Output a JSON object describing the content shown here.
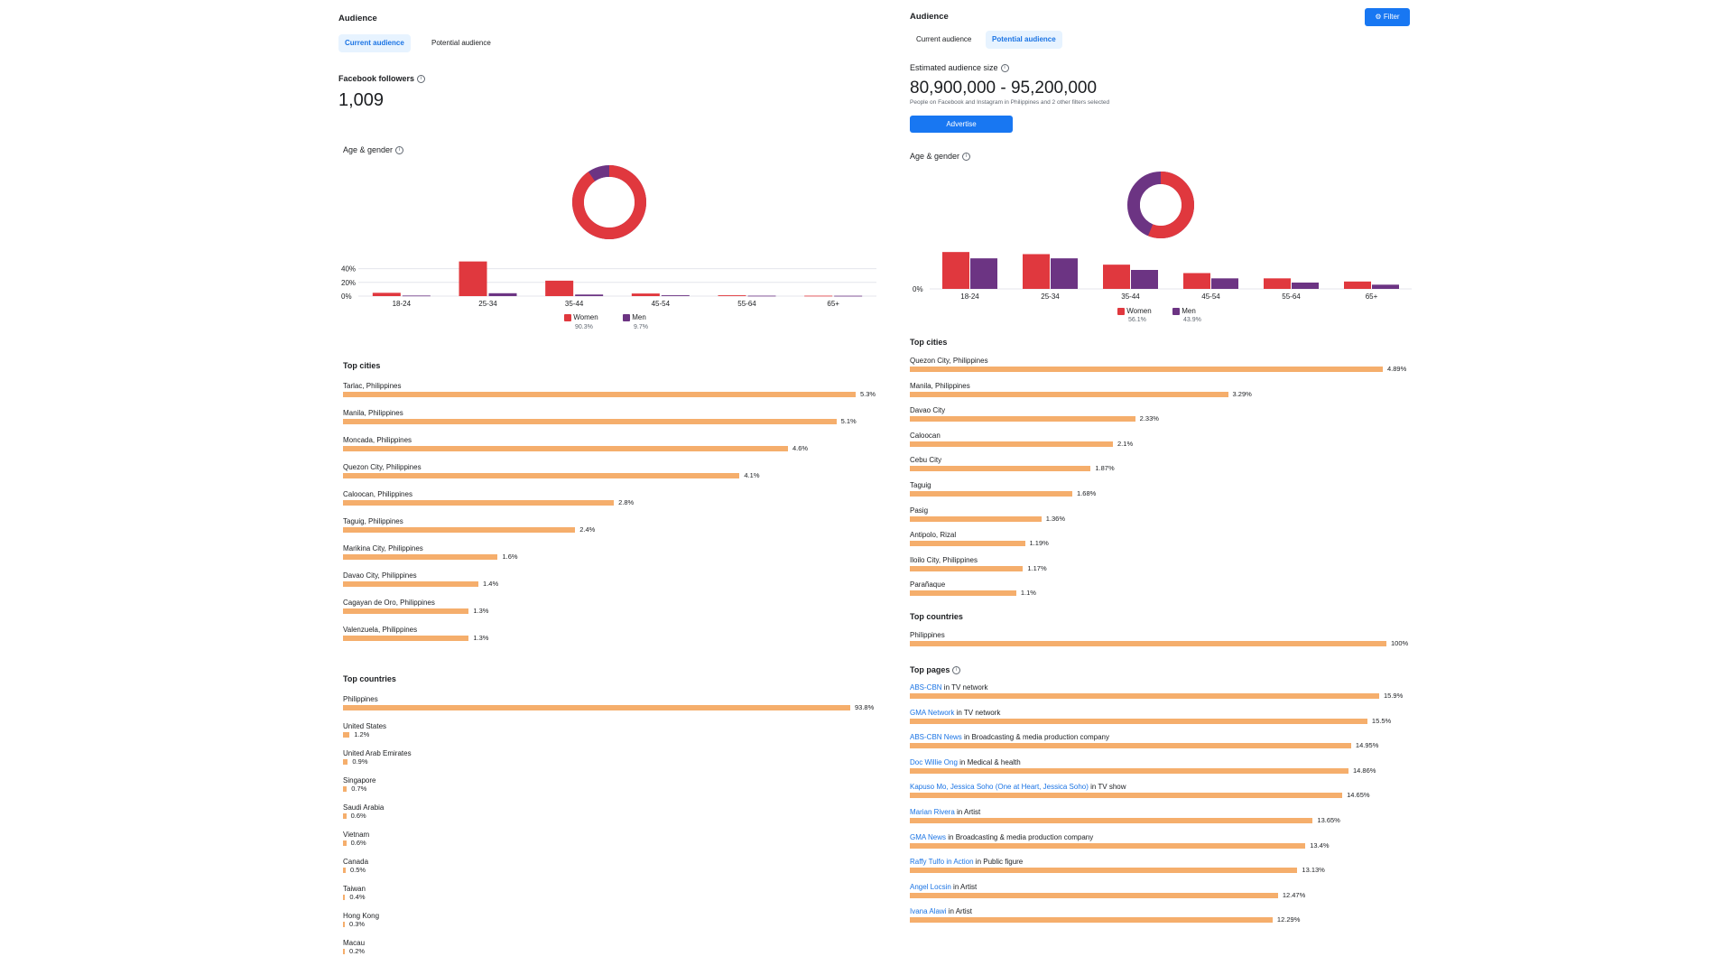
{
  "colors": {
    "women": "#e0383e",
    "men": "#6c3483",
    "bar": "#f5ae6c",
    "accent": "#1877f2"
  },
  "left": {
    "title": "Audience",
    "tabs": [
      {
        "label": "Current audience",
        "active": true
      },
      {
        "label": "Potential audience",
        "active": false
      }
    ],
    "followers_label": "Facebook followers",
    "followers_value": "1,009",
    "age_gender_label": "Age & gender",
    "donut": {
      "women_pct": 90.3,
      "men_pct": 9.7
    },
    "yticks": [
      "40%",
      "20%",
      "0%"
    ],
    "age_groups": [
      "18-24",
      "25-34",
      "35-44",
      "45-54",
      "55-64",
      "65+"
    ],
    "women_values": [
      4.8,
      50.5,
      22.5,
      3.8,
      1.2,
      0.6
    ],
    "men_values": [
      0.8,
      4.2,
      2.3,
      1.2,
      0.6,
      0.5
    ],
    "ymax": 50,
    "legend": {
      "women": "Women",
      "women_pct": "90.3%",
      "men": "Men",
      "men_pct": "9.7%"
    },
    "top_cities_label": "Top cities",
    "top_cities": [
      {
        "name": "Tarlac, Philippines",
        "pct": "5.3%",
        "value": 5.3
      },
      {
        "name": "Manila, Philippines",
        "pct": "5.1%",
        "value": 5.1
      },
      {
        "name": "Moncada, Philippines",
        "pct": "4.6%",
        "value": 4.6
      },
      {
        "name": "Quezon City, Philippines",
        "pct": "4.1%",
        "value": 4.1
      },
      {
        "name": "Caloocan, Philippines",
        "pct": "2.8%",
        "value": 2.8
      },
      {
        "name": "Taguig, Philippines",
        "pct": "2.4%",
        "value": 2.4
      },
      {
        "name": "Marikina City, Philippines",
        "pct": "1.6%",
        "value": 1.6
      },
      {
        "name": "Davao City, Philippines",
        "pct": "1.4%",
        "value": 1.4
      },
      {
        "name": "Cagayan de Oro, Philippines",
        "pct": "1.3%",
        "value": 1.3
      },
      {
        "name": "Valenzuela, Philippines",
        "pct": "1.3%",
        "value": 1.3
      }
    ],
    "top_countries_label": "Top countries",
    "top_countries": [
      {
        "name": "Philippines",
        "pct": "93.8%",
        "value": 93.8
      },
      {
        "name": "United States",
        "pct": "1.2%",
        "value": 1.2
      },
      {
        "name": "United Arab Emirates",
        "pct": "0.9%",
        "value": 0.9
      },
      {
        "name": "Singapore",
        "pct": "0.7%",
        "value": 0.7
      },
      {
        "name": "Saudi Arabia",
        "pct": "0.6%",
        "value": 0.6
      },
      {
        "name": "Vietnam",
        "pct": "0.6%",
        "value": 0.6
      },
      {
        "name": "Canada",
        "pct": "0.5%",
        "value": 0.5
      },
      {
        "name": "Taiwan",
        "pct": "0.4%",
        "value": 0.4
      },
      {
        "name": "Hong Kong",
        "pct": "0.3%",
        "value": 0.3
      },
      {
        "name": "Macau",
        "pct": "0.2%",
        "value": 0.2
      }
    ]
  },
  "right": {
    "title": "Audience",
    "filter_label": "Filter",
    "tabs": [
      {
        "label": "Current audience",
        "active": false
      },
      {
        "label": "Potential audience",
        "active": true
      }
    ],
    "est_label": "Estimated audience size",
    "est_value": "80,900,000 - 95,200,000",
    "est_sub": "People on Facebook and Instagram in Philippines and 2 other filters selected",
    "advertise_label": "Advertise",
    "age_gender_label": "Age & gender",
    "donut": {
      "women_pct": 56.1,
      "men_pct": 43.9
    },
    "yticks": [
      "0%"
    ],
    "age_groups": [
      "18-24",
      "25-34",
      "35-44",
      "45-54",
      "55-64",
      "65+"
    ],
    "women_values": [
      17.5,
      16.5,
      11.5,
      7.5,
      5.0,
      3.5
    ],
    "men_values": [
      14.5,
      14.5,
      9.0,
      5.0,
      3.0,
      2.0
    ],
    "ymax": 18,
    "legend": {
      "women": "Women",
      "women_pct": "56.1%",
      "men": "Men",
      "men_pct": "43.9%"
    },
    "top_cities_label": "Top cities",
    "top_cities": [
      {
        "name": "Quezon City, Philippines",
        "pct": "4.89%",
        "value": 4.89
      },
      {
        "name": "Manila, Philippines",
        "pct": "3.29%",
        "value": 3.29
      },
      {
        "name": "Davao City",
        "pct": "2.33%",
        "value": 2.33
      },
      {
        "name": "Caloocan",
        "pct": "2.1%",
        "value": 2.1
      },
      {
        "name": "Cebu City",
        "pct": "1.87%",
        "value": 1.87
      },
      {
        "name": "Taguig",
        "pct": "1.68%",
        "value": 1.68
      },
      {
        "name": "Pasig",
        "pct": "1.36%",
        "value": 1.36
      },
      {
        "name": "Antipolo, Rizal",
        "pct": "1.19%",
        "value": 1.19
      },
      {
        "name": "Iloilo City, Philippines",
        "pct": "1.17%",
        "value": 1.17
      },
      {
        "name": "Parañaque",
        "pct": "1.1%",
        "value": 1.1
      }
    ],
    "top_countries_label": "Top countries",
    "top_countries": [
      {
        "name": "Philippines",
        "pct": "100%",
        "value": 100
      }
    ],
    "top_pages_label": "Top pages",
    "top_pages": [
      {
        "page": "ABS-CBN",
        "category": " in TV network",
        "pct": "15.9%",
        "value": 15.9
      },
      {
        "page": "GMA Network",
        "category": " in TV network",
        "pct": "15.5%",
        "value": 15.5
      },
      {
        "page": "ABS-CBN News",
        "category": " in Broadcasting & media production company",
        "pct": "14.95%",
        "value": 14.95
      },
      {
        "page": "Doc Willie Ong",
        "category": " in Medical & health",
        "pct": "14.86%",
        "value": 14.86
      },
      {
        "page": "Kapuso Mo, Jessica Soho (One at Heart, Jessica Soho)",
        "category": " in TV show",
        "pct": "14.65%",
        "value": 14.65
      },
      {
        "page": "Marian Rivera",
        "category": " in Artist",
        "pct": "13.65%",
        "value": 13.65
      },
      {
        "page": "GMA News",
        "category": " in Broadcasting & media production company",
        "pct": "13.4%",
        "value": 13.4
      },
      {
        "page": "Raffy Tulfo in Action",
        "category": " in Public figure",
        "pct": "13.13%",
        "value": 13.13
      },
      {
        "page": "Angel Locsin",
        "category": " in Artist",
        "pct": "12.47%",
        "value": 12.47
      },
      {
        "page": "Ivana Alawi",
        "category": " in Artist",
        "pct": "12.29%",
        "value": 12.29
      }
    ]
  }
}
